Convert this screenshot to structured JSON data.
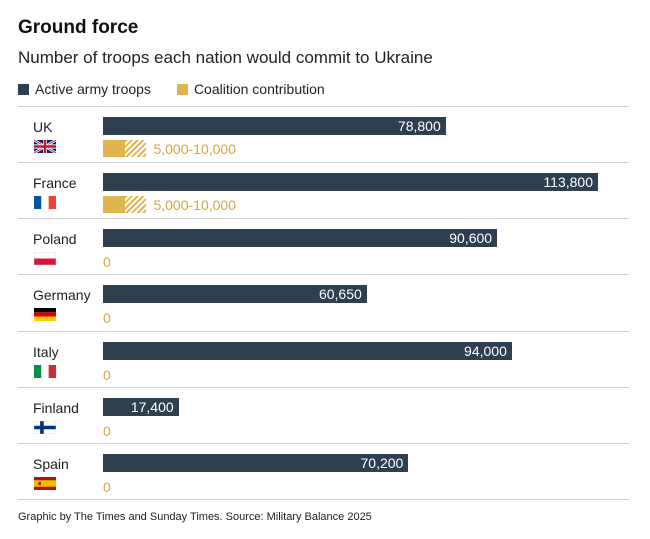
{
  "header": {
    "title": "Ground force",
    "subtitle": "Number of troops each nation would commit to Ukraine"
  },
  "legend": [
    {
      "label": "Active army troops",
      "color": "#2e4050"
    },
    {
      "label": "Coalition contribution",
      "color": "#e0b54e"
    }
  ],
  "chart_data": {
    "type": "bar",
    "orientation": "horizontal",
    "title": "Ground force",
    "subtitle": "Number of troops each nation would commit to Ukraine",
    "xlim": [
      0,
      113800
    ],
    "grid": false,
    "legend_position": "top-left",
    "categories": [
      "UK",
      "France",
      "Poland",
      "Germany",
      "Italy",
      "Finland",
      "Spain"
    ],
    "series": [
      {
        "name": "Active army troops",
        "values": [
          78800,
          113800,
          90600,
          60650,
          94000,
          17400,
          70200
        ],
        "labels": [
          "78,800",
          "113,800",
          "90,600",
          "60,650",
          "94,000",
          "17,400",
          "70,200"
        ],
        "color": "#2e4050"
      },
      {
        "name": "Coalition contribution",
        "values": [
          [
            5000,
            10000
          ],
          [
            5000,
            10000
          ],
          0,
          0,
          0,
          0,
          0
        ],
        "labels": [
          "5,000-10,000",
          "5,000-10,000",
          "0",
          "0",
          "0",
          "0",
          "0"
        ],
        "color": "#e0b54e"
      }
    ],
    "flags": [
      "uk-flag-icon",
      "france-flag-icon",
      "poland-flag-icon",
      "germany-flag-icon",
      "italy-flag-icon",
      "finland-flag-icon",
      "spain-flag-icon"
    ]
  },
  "footer": {
    "source": "Graphic by The Times and Sunday Times. Source: Military Balance 2025"
  }
}
